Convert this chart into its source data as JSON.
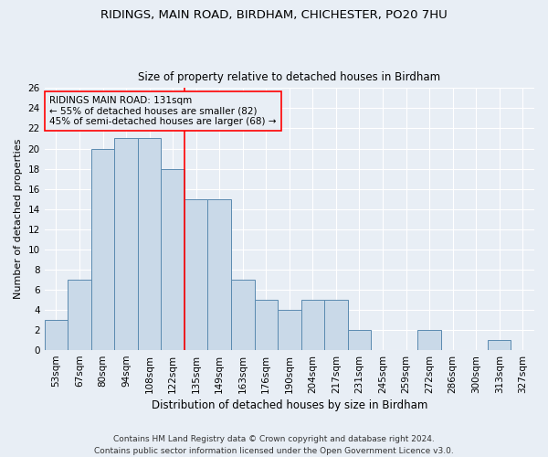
{
  "title": "RIDINGS, MAIN ROAD, BIRDHAM, CHICHESTER, PO20 7HU",
  "subtitle": "Size of property relative to detached houses in Birdham",
  "xlabel": "Distribution of detached houses by size in Birdham",
  "ylabel": "Number of detached properties",
  "bar_color": "#c9d9e8",
  "bar_edge_color": "#5a8ab0",
  "background_color": "#e8eef5",
  "categories": [
    "53sqm",
    "67sqm",
    "80sqm",
    "94sqm",
    "108sqm",
    "122sqm",
    "135sqm",
    "149sqm",
    "163sqm",
    "176sqm",
    "190sqm",
    "204sqm",
    "217sqm",
    "231sqm",
    "245sqm",
    "259sqm",
    "272sqm",
    "286sqm",
    "300sqm",
    "313sqm",
    "327sqm"
  ],
  "values": [
    3,
    7,
    20,
    21,
    21,
    18,
    15,
    15,
    7,
    5,
    4,
    5,
    5,
    2,
    0,
    0,
    2,
    0,
    0,
    1,
    0
  ],
  "ylim": [
    0,
    26
  ],
  "yticks": [
    0,
    2,
    4,
    6,
    8,
    10,
    12,
    14,
    16,
    18,
    20,
    22,
    24,
    26
  ],
  "vline_x_idx": 6,
  "annotation_text": "RIDINGS MAIN ROAD: 131sqm\n← 55% of detached houses are smaller (82)\n45% of semi-detached houses are larger (68) →",
  "footer_line1": "Contains HM Land Registry data © Crown copyright and database right 2024.",
  "footer_line2": "Contains public sector information licensed under the Open Government Licence v3.0.",
  "title_fontsize": 9.5,
  "subtitle_fontsize": 8.5,
  "xlabel_fontsize": 8.5,
  "ylabel_fontsize": 8,
  "tick_fontsize": 7.5,
  "annotation_fontsize": 7.5,
  "footer_fontsize": 6.5
}
